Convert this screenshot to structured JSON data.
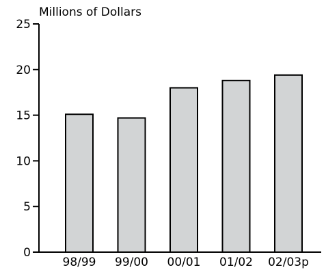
{
  "chart_data": {
    "type": "bar",
    "ylabel": "Millions of Dollars",
    "xlabel": "",
    "categories": [
      "98/99",
      "99/00",
      "00/01",
      "01/02",
      "02/03p"
    ],
    "values": [
      15.1,
      14.7,
      18.0,
      18.8,
      19.4
    ],
    "ylim": [
      0,
      25
    ],
    "yticks": [
      0,
      5,
      10,
      15,
      20,
      25
    ],
    "ytick_labels": [
      "0",
      "5",
      "10",
      "15",
      "20",
      "25"
    ],
    "grid": false,
    "colors": {
      "bar_fill": "#d2d4d5",
      "bar_stroke": "#000000",
      "axis": "#000000"
    }
  }
}
